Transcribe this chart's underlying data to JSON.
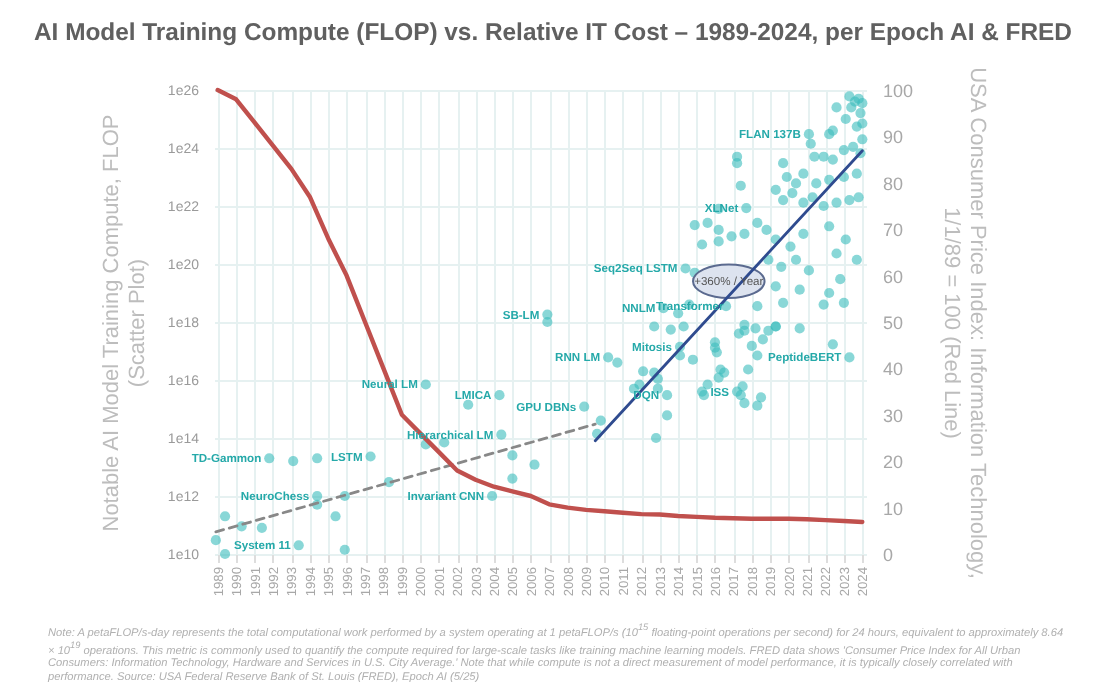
{
  "chart_data": {
    "type": "scatter",
    "title": "AI Model Training Compute (FLOP) vs. Relative IT Cost – 1989-2024, per Epoch AI & FRED",
    "ylabel": "Notable AI Model Training Compute, FLOP\n(Scatter Plot)",
    "y2label": "USA Consumer Price Index: Information Technology,\n1/1/89 = 100 (Red Line)",
    "xlim": [
      1988.8,
      2024.2
    ],
    "xticks": [
      1989,
      1990,
      1991,
      1992,
      1993,
      1994,
      1995,
      1996,
      1997,
      1998,
      1999,
      2000,
      2001,
      2002,
      2003,
      2004,
      2005,
      2006,
      2007,
      2008,
      2009,
      2010,
      2011,
      2012,
      2013,
      2014,
      2015,
      2016,
      2017,
      2018,
      2019,
      2020,
      2021,
      2022,
      2023,
      2024
    ],
    "ylim": [
      10000000000.0,
      1e+26
    ],
    "yticks": [
      {
        "value": 10000000000.0,
        "label": "1e10"
      },
      {
        "value": 1000000000000.0,
        "label": "1e12"
      },
      {
        "value": 100000000000000.0,
        "label": "1e14"
      },
      {
        "value": 1e+16,
        "label": "1e16"
      },
      {
        "value": 1e+18,
        "label": "1e18"
      },
      {
        "value": 1e+20,
        "label": "1e20"
      },
      {
        "value": 1e+22,
        "label": "1e22"
      },
      {
        "value": 1e+24,
        "label": "1e24"
      },
      {
        "value": 1e+26,
        "label": "1e26"
      }
    ],
    "y2lim": [
      0,
      100
    ],
    "y2ticks": [
      0,
      10,
      20,
      30,
      40,
      50,
      60,
      70,
      80,
      90,
      100
    ],
    "log": "y",
    "grid": true,
    "series": [
      {
        "type": "scatter",
        "marker": "circle",
        "color": "#3bbdbd",
        "x": [
          1988.9,
          1989.4,
          1989.4,
          1990.3,
          1991.4,
          1991.8,
          1993.1,
          1993.4,
          1994.4,
          1994.4,
          1994.4,
          1995.4,
          1995.9,
          1995.9,
          1997.3,
          1998.3,
          2000.3,
          2000.3,
          2001.3,
          2002.6,
          2004.3,
          2004.4,
          2003.9,
          2005.0,
          2005.0,
          2006.2,
          2006.9,
          2006.9,
          2008.9,
          2009.6,
          2009.8,
          2010.2,
          2010.7,
          2012.1,
          2011.9,
          2011.6,
          2012.7,
          2012.9,
          2012.9,
          2013.4,
          2013.4,
          2012.8,
          2014.1,
          2014.8,
          2015.3,
          2015.4,
          2015.6,
          2016.0,
          2016.0,
          2016.1,
          2016.3,
          2016.5,
          2016.2,
          2017.2,
          2017.4,
          2017.6,
          2017.5,
          2018.3,
          2018.5,
          2017.8,
          2018.0,
          2018.2,
          2018.3,
          2018.6,
          2018.9,
          2019.3,
          2017.3,
          2017.6,
          2020.6,
          2022.4,
          2023.3,
          2023.3,
          2023.4,
          2023.6,
          2023.8,
          2024.0,
          2023.9,
          2022.6,
          2023.1,
          2023.7,
          2024.0,
          2021.1,
          2022.2,
          2022.4,
          2021.2,
          2021.4,
          2021.9,
          2022.4,
          2023.0,
          2023.5,
          2024.0,
          2023.9,
          2017.2,
          2017.2,
          2017.4,
          2019.7,
          2019.9,
          2020.4,
          2020.8,
          2021.5,
          2022.2,
          2023.0,
          2023.7,
          2019.3,
          2019.7,
          2020.2,
          2020.8,
          2021.3,
          2021.9,
          2022.6,
          2023.3,
          2023.8,
          2017.7,
          2016.2,
          2015.6,
          2016.2,
          2014.9,
          2015.3,
          2016.2,
          2016.9,
          2017.6,
          2018.3,
          2018.8,
          2019.3,
          2020.1,
          2020.8,
          2022.2,
          2023.1,
          2023.7,
          2018.9,
          2019.6,
          2020.4,
          2021.1,
          2022.6,
          2014.4,
          2014.9,
          2019.3,
          2020.6,
          2022.2,
          2022.8,
          2013.2,
          2014.6,
          2014.0,
          2016.6,
          2018.3,
          2019.7,
          2021.9,
          2023.0,
          2012.7,
          2013.6,
          2014.3,
          2017.6,
          2019.3,
          2014.1
        ],
        "values": [
          30000000000.0,
          10000000000.0,
          200000000000.0,
          90000000000.0,
          80000000000.0,
          20000000000000.0,
          16000000000000.0,
          20000000000.0,
          20000000000000.0,
          1000000000000.0,
          500000000000.0,
          200000000000.0,
          1000000000000.0,
          14000000000.0,
          23000000000000.0,
          3000000000000.0,
          7000000000000000.0,
          60000000000000.0,
          70000000000000.0,
          1400000000000000.0,
          3000000000000000.0,
          130000000000000.0,
          1000000000000.0,
          25000000000000.0,
          4000000000000.0,
          12000000000000.0,
          1.8e+18,
          1e+18,
          1200000000000000.0,
          140000000000000.0,
          400000000000000.0,
          6e+16,
          4e+16,
          2e+16,
          7000000000000000.0,
          5000000000000000.0,
          1.8e+16,
          1.1e+16,
          5000000000000000.0,
          3000000000000000.0,
          600000000000000.0,
          100000000000000.0,
          7e+16,
          5e+16,
          4000000000000000.0,
          3000000000000000.0,
          7000000000000000.0,
          2e+17,
          1.3e+17,
          9e+16,
          2.3e+16,
          1.8e+16,
          1.2e+16,
          4000000000000000.0,
          3000000000000000.0,
          1600000000000000.0,
          6000000000000000.0,
          1300000000000000.0,
          2500000000000000.0,
          2.3e+16,
          1.5e+17,
          6e+17,
          7e+16,
          2.5e+17,
          5e+17,
          7e+17,
          4e+17,
          5e+17,
          6e+17,
          1.7e+17,
          6e+16,
          6e+25,
          2.5e+25,
          4e+25,
          5e+25,
          3.5e+25,
          1.6e+25,
          2.5e+25,
          1e+25,
          5.5e+24,
          7e+24,
          3e+24,
          3e+24,
          4e+24,
          1.4e+24,
          5e+23,
          5e+23,
          4e+23,
          8.5e+23,
          1.1e+24,
          2e+24,
          6.6e+23,
          5e+23,
          3e+23,
          5e+22,
          3e+23,
          1e+23,
          6e+22,
          1.3e+23,
          6e+22,
          8e+22,
          1e+23,
          1.3e+23,
          3.6e+22,
          1.6e+22,
          2.8e+22,
          1.3e+22,
          2e+22,
          1e+22,
          1.3e+22,
          1.6e+22,
          2e+22,
          8.5e+21,
          8e+21,
          2.6e+21,
          1.5e+21,
          2.2e+21,
          4.7e+20,
          6e+20,
          9e+20,
          1.1e+21,
          2.6e+21,
          1.5e+21,
          7e+20,
          4e+20,
          1.1e+21,
          2e+21,
          7e+20,
          1.4e+20,
          1.4e+20,
          8e+19,
          1.4e+20,
          6e+19,
          2.3e+20,
          7e+19,
          5e+19,
          1.7e+19,
          1.3e+19,
          1e+19,
          3e+19,
          3e+18,
          4e+18,
          2e+18,
          3.5e+18,
          3.5e+18,
          4.6e+18,
          4e+18,
          4.6e+18,
          7e+17,
          5.5e+17,
          7e+17,
          8e+17,
          7e+17,
          1.4e+17
        ]
      },
      {
        "type": "line",
        "color": "#888888",
        "line_style": "dashed",
        "x": [
          1988.9,
          2009.5
        ],
        "values": [
          58000000000.0,
          300000000000000.0
        ]
      },
      {
        "type": "line",
        "name": "+360% / Year",
        "color": "#2f4b8f",
        "x": [
          2009.5,
          2024
        ],
        "values": [
          80000000000000.0,
          8e+23
        ]
      },
      {
        "type": "line",
        "axis": "y2",
        "color": "#c0504d",
        "x": [
          1989,
          1990,
          1991,
          1992,
          1993,
          1994,
          1995,
          1996,
          1997,
          1998,
          1999,
          2000,
          2001,
          2002,
          2003,
          2004,
          2005,
          2006,
          2007,
          2008,
          2009,
          2010,
          2011,
          2012,
          2013,
          2014,
          2015,
          2016,
          2017,
          2018,
          2019,
          2020,
          2021,
          2022,
          2023,
          2024
        ],
        "values": [
          100,
          98,
          93,
          88,
          83,
          77,
          68,
          60,
          50,
          40,
          30,
          26,
          22,
          18,
          16,
          14.5,
          13.5,
          12.5,
          10.7,
          10,
          9.5,
          9.2,
          8.9,
          8.6,
          8.5,
          8.2,
          8,
          7.8,
          7.7,
          7.6,
          7.6,
          7.6,
          7.5,
          7.3,
          7.1,
          6.9
        ]
      }
    ],
    "annotations": [
      {
        "text": "TD-Gammon",
        "x": 1991.8,
        "y": 20000000000000.0
      },
      {
        "text": "NeuroChess",
        "x": 1994.4,
        "y": 1000000000000.0
      },
      {
        "text": "System 11",
        "x": 1993.4,
        "y": 20000000000.0
      },
      {
        "text": "LSTM",
        "x": 1997.3,
        "y": 23000000000000.0
      },
      {
        "text": "Neural LM",
        "x": 2000.3,
        "y": 7000000000000000.0
      },
      {
        "text": "LMICA",
        "x": 2004.3,
        "y": 3000000000000000.0
      },
      {
        "text": "Hierarchical LM",
        "x": 2004.4,
        "y": 130000000000000.0
      },
      {
        "text": "Invariant CNN",
        "x": 2003.9,
        "y": 1000000000000.0
      },
      {
        "text": "SB-LM",
        "x": 2006.9,
        "y": 1.8e+18
      },
      {
        "text": "GPU DBNs",
        "x": 2008.9,
        "y": 1200000000000000.0
      },
      {
        "text": "RNN LM",
        "x": 2010.2,
        "y": 6e+16
      },
      {
        "text": "DQN",
        "x": 2013.4,
        "y": 3000000000000000.0
      },
      {
        "text": "ISS",
        "x": 2017.2,
        "y": 4000000000000000.0
      },
      {
        "text": "PeptideBERT",
        "x": 2023.3,
        "y": 6e+16
      },
      {
        "text": "FLAN 137B",
        "x": 2021.1,
        "y": 3e+24
      },
      {
        "text": "XLNet",
        "x": 2017.7,
        "y": 8.5e+21
      },
      {
        "text": "Seq2Seq LSTM",
        "x": 2014.4,
        "y": 7e+19
      },
      {
        "text": "NNLM",
        "x": 2013.2,
        "y": 3e+18
      },
      {
        "text": "Transformer",
        "x": 2016.9,
        "y": 3.5e+18
      },
      {
        "text": "Mitosis",
        "x": 2014.1,
        "y": 1.4e+17
      },
      "Note: A petaFLOP/s-day represents the total computational work performed by a system operating at 1 petaFLOP/s (10$^{15}$ floating-point operations per second) for 24 hours, equivalent to approximately 8.64 × 10$^{19}$ operations. This metric is commonly used to quantify the compute required for large-scale tasks like training machine learning models. FRED data shows 'Consumer Price Index for All Urban Consumers: Information Technology, Hardware and Services in U.S. City Average.' Note that while compute is not a direct measurement of model performance, it is typically closely correlated with performance. Source: USA Federal Reserve Bank of St. Louis (FRED), Epoch AI (5/25)"
    ]
  }
}
